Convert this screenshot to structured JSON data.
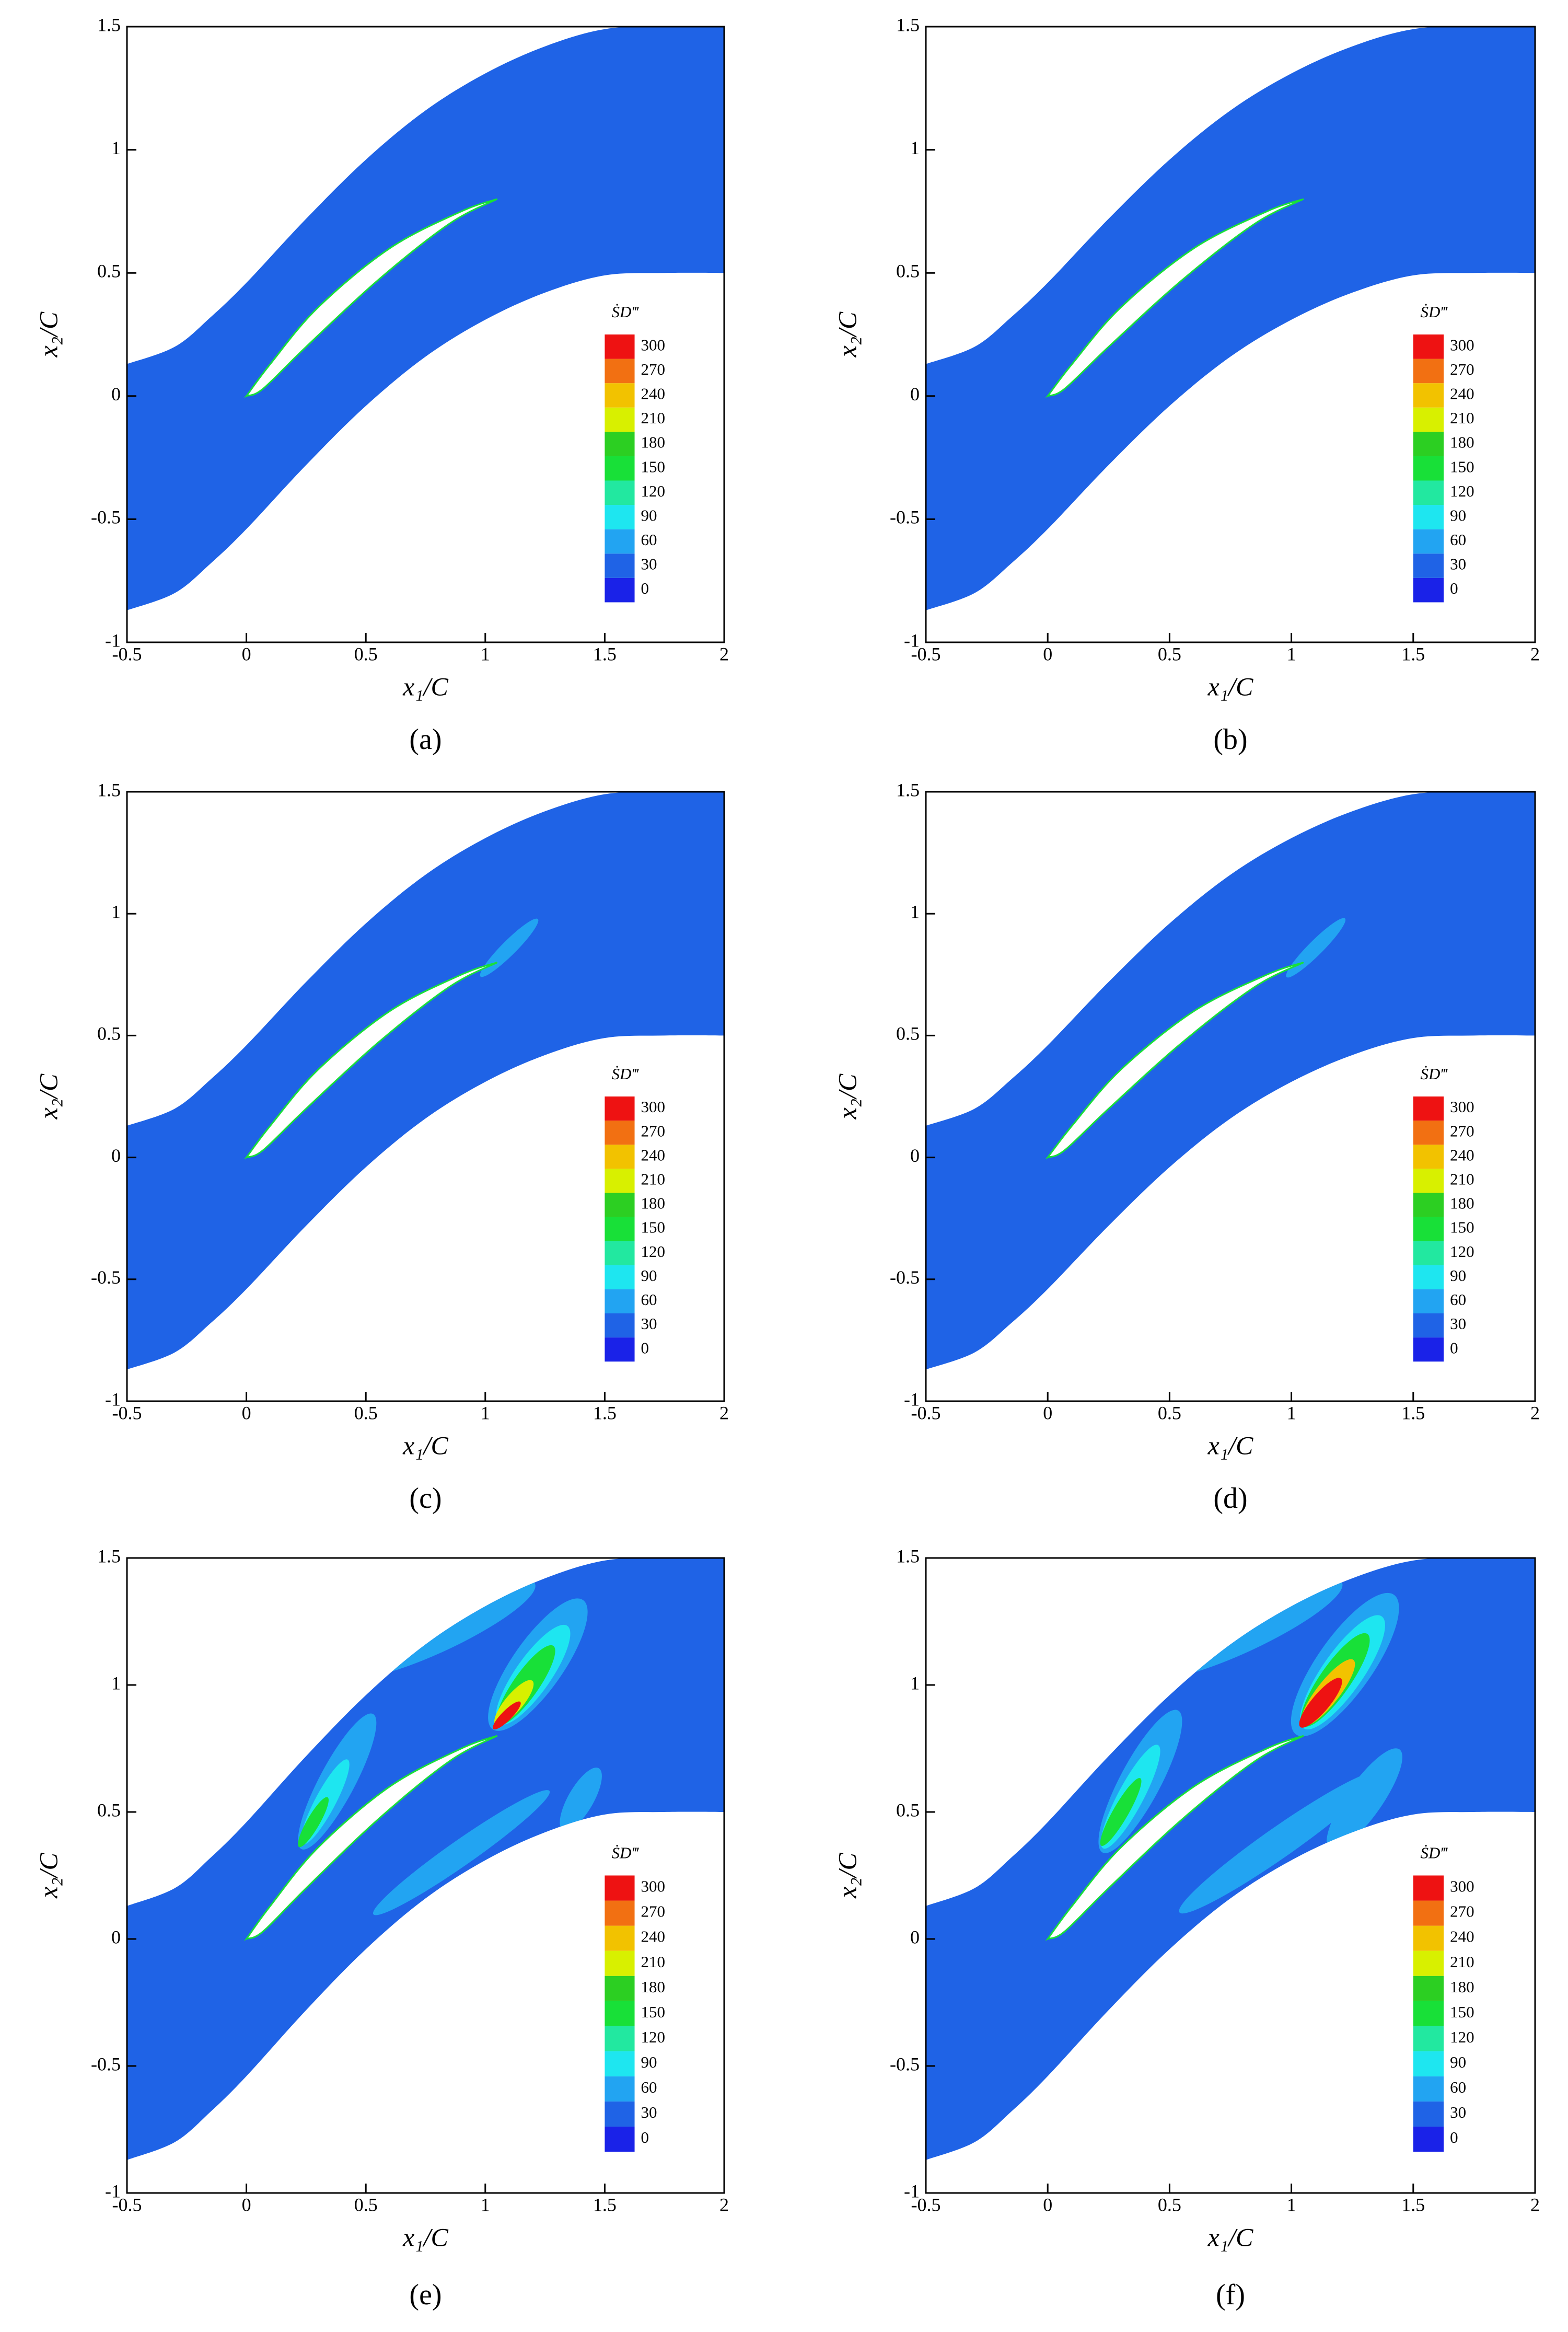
{
  "chart_data": [
    {
      "type": "contour",
      "panel_label": "(a)",
      "xlabel": "x₁/C",
      "ylabel": "x₂/C",
      "colorbar_title": "ṠD‴",
      "xlim": [
        -0.5,
        2
      ],
      "ylim": [
        -1,
        1.5
      ],
      "xticks": [
        -0.5,
        0,
        0.5,
        1,
        1.5,
        2
      ],
      "yticks": [
        -1,
        -0.5,
        0,
        0.5,
        1,
        1.5
      ],
      "levels": [
        0,
        30,
        60,
        90,
        120,
        150,
        180,
        210,
        240,
        270,
        300
      ],
      "colors": [
        "#1a22e8",
        "#1f63e6",
        "#22a4f2",
        "#1ee6f0",
        "#22e8a0",
        "#18e038",
        "#2ccf22",
        "#d8f000",
        "#f2c200",
        "#f27012",
        "#ee1212"
      ]
    },
    {
      "type": "contour",
      "panel_label": "(b)",
      "xlabel": "x₁/C",
      "ylabel": "x₂/C",
      "colorbar_title": "ṠD‴",
      "xlim": [
        -0.5,
        2
      ],
      "ylim": [
        -1,
        1.5
      ],
      "xticks": [
        -0.5,
        0,
        0.5,
        1,
        1.5,
        2
      ],
      "yticks": [
        -1,
        -0.5,
        0,
        0.5,
        1,
        1.5
      ],
      "levels": [
        0,
        30,
        60,
        90,
        120,
        150,
        180,
        210,
        240,
        270,
        300
      ],
      "colors": [
        "#1a22e8",
        "#1f63e6",
        "#22a4f2",
        "#1ee6f0",
        "#22e8a0",
        "#18e038",
        "#2ccf22",
        "#d8f000",
        "#f2c200",
        "#f27012",
        "#ee1212"
      ]
    },
    {
      "type": "contour",
      "panel_label": "(c)",
      "xlabel": "x₁/C",
      "ylabel": "x₂/C",
      "colorbar_title": "ṠD‴",
      "xlim": [
        -0.5,
        2
      ],
      "ylim": [
        -1,
        1.5
      ],
      "xticks": [
        -0.5,
        0,
        0.5,
        1,
        1.5,
        2
      ],
      "yticks": [
        -1,
        -0.5,
        0,
        0.5,
        1,
        1.5
      ],
      "levels": [
        0,
        30,
        60,
        90,
        120,
        150,
        180,
        210,
        240,
        270,
        300
      ],
      "colors": [
        "#1a22e8",
        "#1f63e6",
        "#22a4f2",
        "#1ee6f0",
        "#22e8a0",
        "#18e038",
        "#2ccf22",
        "#d8f000",
        "#f2c200",
        "#f27012",
        "#ee1212"
      ]
    },
    {
      "type": "contour",
      "panel_label": "(d)",
      "xlabel": "x₁/C",
      "ylabel": "x₂/C",
      "colorbar_title": "ṠD‴",
      "xlim": [
        -0.5,
        2
      ],
      "ylim": [
        -1,
        1.5
      ],
      "xticks": [
        -0.5,
        0,
        0.5,
        1,
        1.5,
        2
      ],
      "yticks": [
        -1,
        -0.5,
        0,
        0.5,
        1,
        1.5
      ],
      "levels": [
        0,
        30,
        60,
        90,
        120,
        150,
        180,
        210,
        240,
        270,
        300
      ],
      "colors": [
        "#1a22e8",
        "#1f63e6",
        "#22a4f2",
        "#1ee6f0",
        "#22e8a0",
        "#18e038",
        "#2ccf22",
        "#d8f000",
        "#f2c200",
        "#f27012",
        "#ee1212"
      ]
    },
    {
      "type": "contour",
      "panel_label": "(e)",
      "xlabel": "x₁/C",
      "ylabel": "x₂/C",
      "colorbar_title": "ṠD‴",
      "xlim": [
        -0.5,
        2
      ],
      "ylim": [
        -1,
        1.5
      ],
      "xticks": [
        -0.5,
        0,
        0.5,
        1,
        1.5,
        2
      ],
      "yticks": [
        -1,
        -0.5,
        0,
        0.5,
        1,
        1.5
      ],
      "levels": [
        0,
        30,
        60,
        90,
        120,
        150,
        180,
        210,
        240,
        270,
        300
      ],
      "colors": [
        "#1a22e8",
        "#1f63e6",
        "#22a4f2",
        "#1ee6f0",
        "#22e8a0",
        "#18e038",
        "#2ccf22",
        "#d8f000",
        "#f2c200",
        "#f27012",
        "#ee1212"
      ]
    },
    {
      "type": "contour",
      "panel_label": "(f)",
      "xlabel": "x₁/C",
      "ylabel": "x₂/C",
      "colorbar_title": "ṠD‴",
      "xlim": [
        -0.5,
        2
      ],
      "ylim": [
        -1,
        1.5
      ],
      "xticks": [
        -0.5,
        0,
        0.5,
        1,
        1.5,
        2
      ],
      "yticks": [
        -1,
        -0.5,
        0,
        0.5,
        1,
        1.5
      ],
      "levels": [
        0,
        30,
        60,
        90,
        120,
        150,
        180,
        210,
        240,
        270,
        300
      ],
      "colors": [
        "#1a22e8",
        "#1f63e6",
        "#22a4f2",
        "#1ee6f0",
        "#22e8a0",
        "#18e038",
        "#2ccf22",
        "#d8f000",
        "#f2c200",
        "#f27012",
        "#ee1212"
      ]
    }
  ]
}
